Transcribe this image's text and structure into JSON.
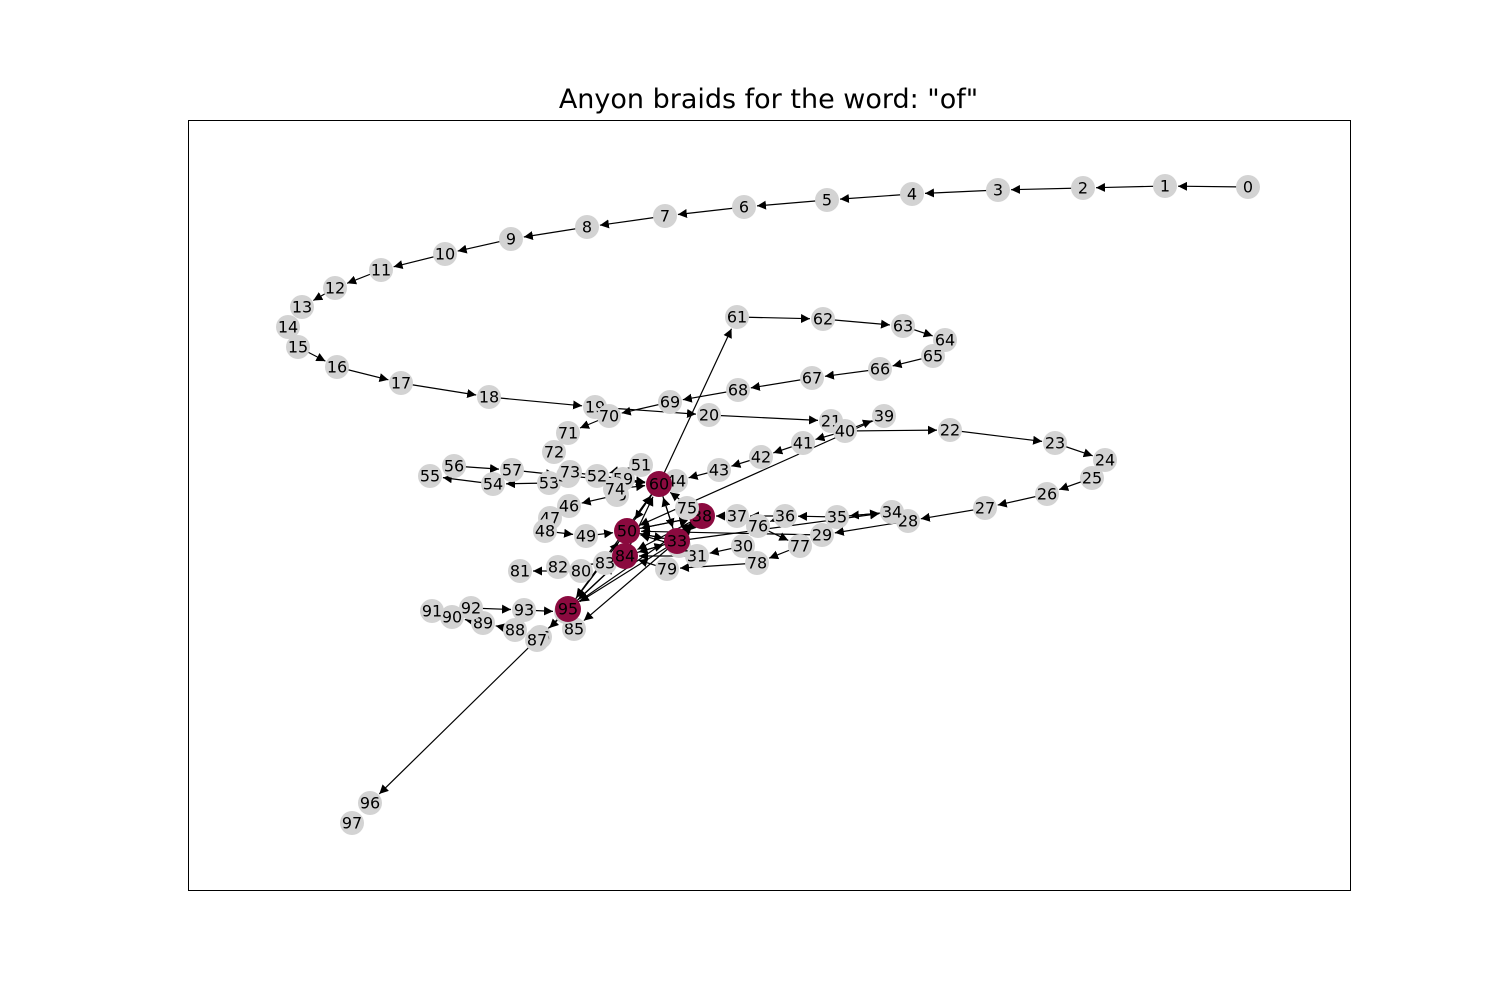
{
  "title": "Anyon braids for the word: \"of\"",
  "colors": {
    "background": "#ffffff",
    "frame": "#000000",
    "node_default": "#d3d3d3",
    "node_highlight": "#8b0a3f",
    "edge": "#000000",
    "label": "#000000"
  },
  "diagram": {
    "highlighted_nodes": [
      "33",
      "38",
      "50",
      "60",
      "84",
      "95"
    ],
    "nodes": [
      "0",
      "1",
      "2",
      "3",
      "4",
      "5",
      "6",
      "7",
      "8",
      "9",
      "10",
      "11",
      "12",
      "13",
      "14",
      "15",
      "16",
      "17",
      "18",
      "19",
      "20",
      "21",
      "22",
      "23",
      "24",
      "25",
      "26",
      "27",
      "28",
      "29",
      "30",
      "31",
      "32",
      "33",
      "34",
      "35",
      "36",
      "37",
      "38",
      "39",
      "40",
      "41",
      "42",
      "43",
      "44",
      "45",
      "46",
      "47",
      "48",
      "49",
      "50",
      "51",
      "52",
      "53",
      "54",
      "55",
      "56",
      "57",
      "58",
      "59",
      "60",
      "61",
      "62",
      "63",
      "64",
      "65",
      "66",
      "67",
      "68",
      "69",
      "70",
      "71",
      "72",
      "73",
      "74",
      "75",
      "76",
      "77",
      "78",
      "79",
      "80",
      "81",
      "82",
      "83",
      "84",
      "85",
      "86",
      "87",
      "88",
      "89",
      "90",
      "91",
      "92",
      "93",
      "94",
      "95",
      "96",
      "97"
    ],
    "edges": [
      [
        "0",
        "1"
      ],
      [
        "1",
        "2"
      ],
      [
        "2",
        "3"
      ],
      [
        "3",
        "4"
      ],
      [
        "4",
        "5"
      ],
      [
        "5",
        "6"
      ],
      [
        "6",
        "7"
      ],
      [
        "7",
        "8"
      ],
      [
        "8",
        "9"
      ],
      [
        "9",
        "10"
      ],
      [
        "10",
        "11"
      ],
      [
        "11",
        "12"
      ],
      [
        "12",
        "13"
      ],
      [
        "15",
        "16"
      ],
      [
        "16",
        "17"
      ],
      [
        "17",
        "18"
      ],
      [
        "18",
        "19"
      ],
      [
        "19",
        "20"
      ],
      [
        "20",
        "21"
      ],
      [
        "40",
        "22"
      ],
      [
        "22",
        "23"
      ],
      [
        "23",
        "24"
      ],
      [
        "25",
        "26"
      ],
      [
        "26",
        "27"
      ],
      [
        "27",
        "28"
      ],
      [
        "28",
        "29"
      ],
      [
        "29",
        "50"
      ],
      [
        "30",
        "31"
      ],
      [
        "31",
        "84"
      ],
      [
        "32",
        "50"
      ],
      [
        "33",
        "34"
      ],
      [
        "34",
        "35"
      ],
      [
        "35",
        "36"
      ],
      [
        "36",
        "37"
      ],
      [
        "37",
        "38"
      ],
      [
        "38",
        "50"
      ],
      [
        "40",
        "39"
      ],
      [
        "40",
        "41"
      ],
      [
        "41",
        "42"
      ],
      [
        "42",
        "43"
      ],
      [
        "43",
        "44"
      ],
      [
        "44",
        "60"
      ],
      [
        "45",
        "46"
      ],
      [
        "48",
        "49"
      ],
      [
        "49",
        "50"
      ],
      [
        "50",
        "60"
      ],
      [
        "53",
        "54"
      ],
      [
        "54",
        "55"
      ],
      [
        "56",
        "57"
      ],
      [
        "58",
        "60"
      ],
      [
        "59",
        "60"
      ],
      [
        "60",
        "61"
      ],
      [
        "61",
        "62"
      ],
      [
        "62",
        "63"
      ],
      [
        "63",
        "64"
      ],
      [
        "65",
        "66"
      ],
      [
        "66",
        "67"
      ],
      [
        "67",
        "68"
      ],
      [
        "68",
        "69"
      ],
      [
        "69",
        "70"
      ],
      [
        "70",
        "71"
      ],
      [
        "73",
        "60"
      ],
      [
        "74",
        "60"
      ],
      [
        "76",
        "30"
      ],
      [
        "75",
        "33"
      ],
      [
        "76",
        "77"
      ],
      [
        "77",
        "78"
      ],
      [
        "78",
        "79"
      ],
      [
        "79",
        "84"
      ],
      [
        "80",
        "81"
      ],
      [
        "83",
        "82"
      ],
      [
        "84",
        "95"
      ],
      [
        "85",
        "95"
      ],
      [
        "86",
        "87"
      ],
      [
        "88",
        "89"
      ],
      [
        "92",
        "93"
      ],
      [
        "93",
        "94"
      ],
      [
        "95",
        "96"
      ],
      [
        "60",
        "33"
      ],
      [
        "33",
        "84"
      ],
      [
        "84",
        "60"
      ],
      [
        "50",
        "95"
      ],
      [
        "95",
        "38"
      ],
      [
        "38",
        "84"
      ],
      [
        "50",
        "33"
      ],
      [
        "60",
        "95"
      ],
      [
        "33",
        "95"
      ],
      [
        "50",
        "38"
      ],
      [
        "84",
        "33"
      ],
      [
        "95",
        "50"
      ],
      [
        "38",
        "60"
      ],
      [
        "33",
        "60"
      ],
      [
        "84",
        "50"
      ],
      [
        "50",
        "84"
      ],
      [
        "95",
        "84"
      ],
      [
        "60",
        "50"
      ],
      [
        "38",
        "33"
      ],
      [
        "33",
        "50"
      ],
      [
        "94",
        "86"
      ],
      [
        "89",
        "90"
      ],
      [
        "57",
        "58"
      ],
      [
        "51",
        "52"
      ],
      [
        "35",
        "34"
      ],
      [
        "38",
        "75"
      ],
      [
        "21",
        "40"
      ],
      [
        "24",
        "25"
      ],
      [
        "39",
        "50"
      ],
      [
        "33",
        "85"
      ],
      [
        "33",
        "38"
      ],
      [
        "36",
        "76"
      ]
    ]
  }
}
